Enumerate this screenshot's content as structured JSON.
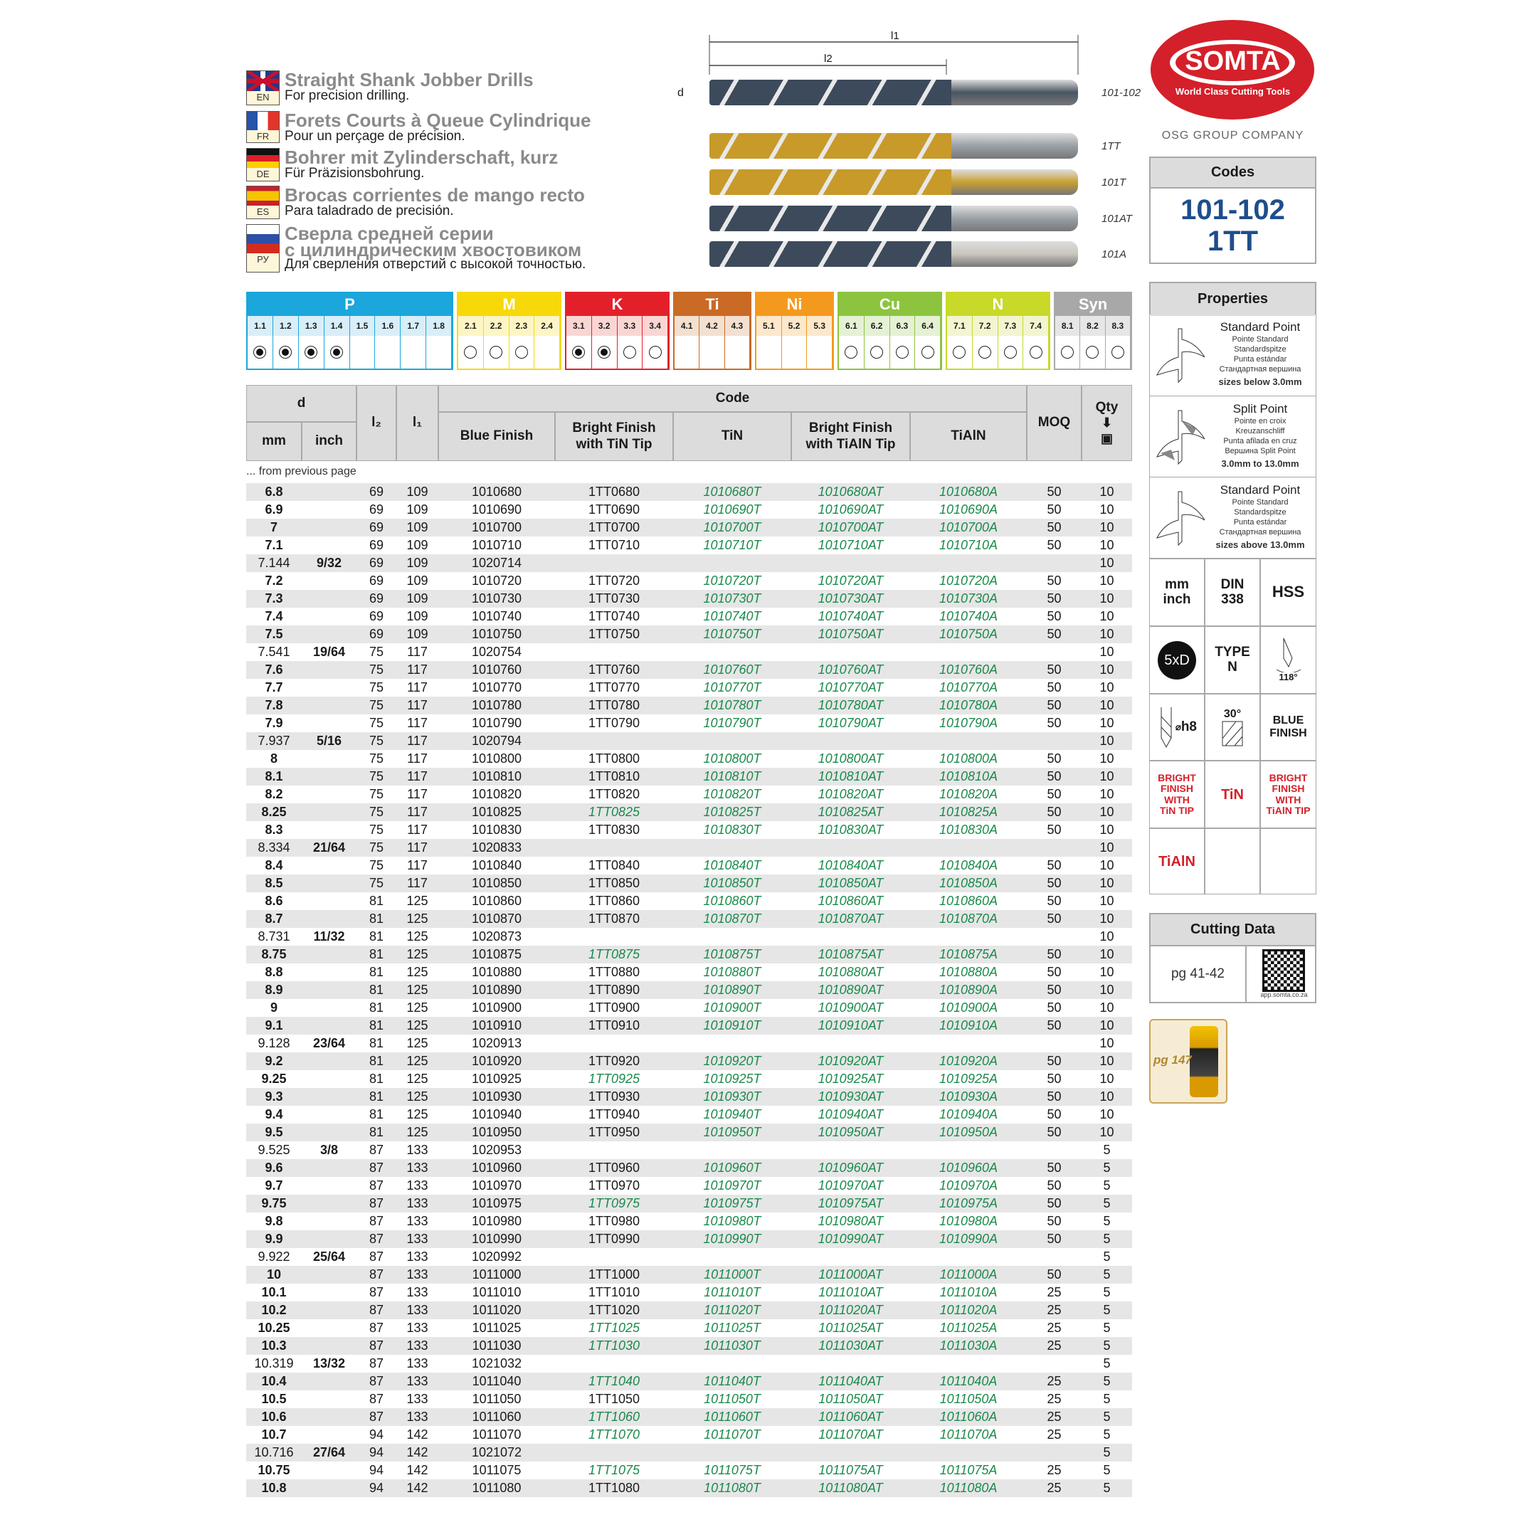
{
  "titles": [
    {
      "lang": "EN",
      "title": "Straight Shank Jobber Drills",
      "subtitle": "For precision drilling."
    },
    {
      "lang": "FR",
      "title": "Forets Courts à Queue Cylindrique",
      "subtitle": "Pour un perçage de précision."
    },
    {
      "lang": "DE",
      "title": "Bohrer mit Zylinderschaft, kurz",
      "subtitle": "Für Präzisionsbohrung."
    },
    {
      "lang": "ES",
      "title": "Brocas corrientes de mango recto",
      "subtitle": "Para taladrado de precisión."
    },
    {
      "lang": "РУ",
      "title": "Сверла средней серии",
      "title2": "с цилиндрическим хвостовиком",
      "subtitle": "Для сверления отверстий с высокой точностью."
    }
  ],
  "drawing": {
    "l1": "l1",
    "l2": "l2",
    "d": "d",
    "labels": [
      "101-102",
      "1TT",
      "101T",
      "101AT",
      "101A"
    ]
  },
  "logo": {
    "brand": "SOMTA",
    "tagline": "World Class Cutting Tools",
    "group": "OSG GROUP COMPANY",
    "color": "#d4202a"
  },
  "codes": {
    "header": "Codes",
    "line1": "101-102",
    "line2": "1TT",
    "color": "#1e4e8c"
  },
  "materials": [
    {
      "name": "P",
      "color": "#1ba6dc",
      "light": "#d8eef8",
      "subs": [
        "1.1",
        "1.2",
        "1.3",
        "1.4",
        "1.5",
        "1.6",
        "1.7",
        "1.8"
      ],
      "marks": [
        "full",
        "full",
        "full",
        "full",
        "",
        "",
        "",
        ""
      ]
    },
    {
      "name": "M",
      "color": "#f7d90a",
      "light": "#fdf6c4",
      "subs": [
        "2.1",
        "2.2",
        "2.3",
        "2.4"
      ],
      "marks": [
        "open",
        "open",
        "open",
        ""
      ]
    },
    {
      "name": "K",
      "color": "#e3202a",
      "light": "#f9d6d4",
      "subs": [
        "3.1",
        "3.2",
        "3.3",
        "3.4"
      ],
      "marks": [
        "full",
        "full",
        "open",
        "open"
      ]
    },
    {
      "name": "Ti",
      "color": "#c96a25",
      "light": "#f3e0d0",
      "subs": [
        "4.1",
        "4.2",
        "4.3"
      ],
      "marks": [
        "",
        "",
        ""
      ]
    },
    {
      "name": "Ni",
      "color": "#f39a1e",
      "light": "#fde8cc",
      "subs": [
        "5.1",
        "5.2",
        "5.3"
      ],
      "marks": [
        "",
        "",
        ""
      ]
    },
    {
      "name": "Cu",
      "color": "#8cc43f",
      "light": "#e5f1d4",
      "subs": [
        "6.1",
        "6.2",
        "6.3",
        "6.4"
      ],
      "marks": [
        "open",
        "open",
        "open",
        "open"
      ]
    },
    {
      "name": "N",
      "color": "#c8d92a",
      "light": "#f2f5cf",
      "subs": [
        "7.1",
        "7.2",
        "7.3",
        "7.4"
      ],
      "marks": [
        "open",
        "open",
        "open",
        "open"
      ]
    },
    {
      "name": "Syn",
      "color": "#a8a8a8",
      "light": "#e6e6e6",
      "subs": [
        "8.1",
        "8.2",
        "8.3"
      ],
      "marks": [
        "open",
        "open",
        "open"
      ]
    }
  ],
  "table": {
    "headers": {
      "d": "d",
      "mm": "mm",
      "inch": "inch",
      "l2": "l₂",
      "l1": "l₁",
      "code": "Code",
      "blue": "Blue Finish",
      "bright_tin": "Bright Finish with TiN Tip",
      "tin": "TiN",
      "bright_tialn": "Bright Finish with TiAlN Tip",
      "tialn": "TiAlN",
      "moq": "MOQ",
      "qty": "Qty"
    },
    "note": "... from previous page",
    "green_color": "#1a8a4a",
    "rows": [
      [
        "6.8",
        "",
        "69",
        "109",
        "1010680",
        "1TT0680",
        "1010680T",
        "1010680AT",
        "1010680A",
        "50",
        "10",
        0
      ],
      [
        "6.9",
        "",
        "69",
        "109",
        "1010690",
        "1TT0690",
        "1010690T",
        "1010690AT",
        "1010690A",
        "50",
        "10",
        0
      ],
      [
        "7",
        "",
        "69",
        "109",
        "1010700",
        "1TT0700",
        "1010700T",
        "1010700AT",
        "1010700A",
        "50",
        "10",
        0
      ],
      [
        "7.1",
        "",
        "69",
        "109",
        "1010710",
        "1TT0710",
        "1010710T",
        "1010710AT",
        "1010710A",
        "50",
        "10",
        0
      ],
      [
        "7.144",
        "9/32",
        "69",
        "109",
        "1020714",
        "",
        "",
        "",
        "",
        "",
        "10",
        0
      ],
      [
        "7.2",
        "",
        "69",
        "109",
        "1010720",
        "1TT0720",
        "1010720T",
        "1010720AT",
        "1010720A",
        "50",
        "10",
        0
      ],
      [
        "7.3",
        "",
        "69",
        "109",
        "1010730",
        "1TT0730",
        "1010730T",
        "1010730AT",
        "1010730A",
        "50",
        "10",
        0
      ],
      [
        "7.4",
        "",
        "69",
        "109",
        "1010740",
        "1TT0740",
        "1010740T",
        "1010740AT",
        "1010740A",
        "50",
        "10",
        0
      ],
      [
        "7.5",
        "",
        "69",
        "109",
        "1010750",
        "1TT0750",
        "1010750T",
        "1010750AT",
        "1010750A",
        "50",
        "10",
        0
      ],
      [
        "7.541",
        "19/64",
        "75",
        "117",
        "1020754",
        "",
        "",
        "",
        "",
        "",
        "10",
        0
      ],
      [
        "7.6",
        "",
        "75",
        "117",
        "1010760",
        "1TT0760",
        "1010760T",
        "1010760AT",
        "1010760A",
        "50",
        "10",
        0
      ],
      [
        "7.7",
        "",
        "75",
        "117",
        "1010770",
        "1TT0770",
        "1010770T",
        "1010770AT",
        "1010770A",
        "50",
        "10",
        0
      ],
      [
        "7.8",
        "",
        "75",
        "117",
        "1010780",
        "1TT0780",
        "1010780T",
        "1010780AT",
        "1010780A",
        "50",
        "10",
        0
      ],
      [
        "7.9",
        "",
        "75",
        "117",
        "1010790",
        "1TT0790",
        "1010790T",
        "1010790AT",
        "1010790A",
        "50",
        "10",
        0
      ],
      [
        "7.937",
        "5/16",
        "75",
        "117",
        "1020794",
        "",
        "",
        "",
        "",
        "",
        "10",
        0
      ],
      [
        "8",
        "",
        "75",
        "117",
        "1010800",
        "1TT0800",
        "1010800T",
        "1010800AT",
        "1010800A",
        "50",
        "10",
        0
      ],
      [
        "8.1",
        "",
        "75",
        "117",
        "1010810",
        "1TT0810",
        "1010810T",
        "1010810AT",
        "1010810A",
        "50",
        "10",
        0
      ],
      [
        "8.2",
        "",
        "75",
        "117",
        "1010820",
        "1TT0820",
        "1010820T",
        "1010820AT",
        "1010820A",
        "50",
        "10",
        0
      ],
      [
        "8.25",
        "",
        "75",
        "117",
        "1010825",
        "1TT0825",
        "1010825T",
        "1010825AT",
        "1010825A",
        "50",
        "10",
        1
      ],
      [
        "8.3",
        "",
        "75",
        "117",
        "1010830",
        "1TT0830",
        "1010830T",
        "1010830AT",
        "1010830A",
        "50",
        "10",
        0
      ],
      [
        "8.334",
        "21/64",
        "75",
        "117",
        "1020833",
        "",
        "",
        "",
        "",
        "",
        "10",
        0
      ],
      [
        "8.4",
        "",
        "75",
        "117",
        "1010840",
        "1TT0840",
        "1010840T",
        "1010840AT",
        "1010840A",
        "50",
        "10",
        0
      ],
      [
        "8.5",
        "",
        "75",
        "117",
        "1010850",
        "1TT0850",
        "1010850T",
        "1010850AT",
        "1010850A",
        "50",
        "10",
        0
      ],
      [
        "8.6",
        "",
        "81",
        "125",
        "1010860",
        "1TT0860",
        "1010860T",
        "1010860AT",
        "1010860A",
        "50",
        "10",
        0
      ],
      [
        "8.7",
        "",
        "81",
        "125",
        "1010870",
        "1TT0870",
        "1010870T",
        "1010870AT",
        "1010870A",
        "50",
        "10",
        0
      ],
      [
        "8.731",
        "11/32",
        "81",
        "125",
        "1020873",
        "",
        "",
        "",
        "",
        "",
        "10",
        0
      ],
      [
        "8.75",
        "",
        "81",
        "125",
        "1010875",
        "1TT0875",
        "1010875T",
        "1010875AT",
        "1010875A",
        "50",
        "10",
        1
      ],
      [
        "8.8",
        "",
        "81",
        "125",
        "1010880",
        "1TT0880",
        "1010880T",
        "1010880AT",
        "1010880A",
        "50",
        "10",
        0
      ],
      [
        "8.9",
        "",
        "81",
        "125",
        "1010890",
        "1TT0890",
        "1010890T",
        "1010890AT",
        "1010890A",
        "50",
        "10",
        0
      ],
      [
        "9",
        "",
        "81",
        "125",
        "1010900",
        "1TT0900",
        "1010900T",
        "1010900AT",
        "1010900A",
        "50",
        "10",
        0
      ],
      [
        "9.1",
        "",
        "81",
        "125",
        "1010910",
        "1TT0910",
        "1010910T",
        "1010910AT",
        "1010910A",
        "50",
        "10",
        0
      ],
      [
        "9.128",
        "23/64",
        "81",
        "125",
        "1020913",
        "",
        "",
        "",
        "",
        "",
        "10",
        0
      ],
      [
        "9.2",
        "",
        "81",
        "125",
        "1010920",
        "1TT0920",
        "1010920T",
        "1010920AT",
        "1010920A",
        "50",
        "10",
        0
      ],
      [
        "9.25",
        "",
        "81",
        "125",
        "1010925",
        "1TT0925",
        "1010925T",
        "1010925AT",
        "1010925A",
        "50",
        "10",
        1
      ],
      [
        "9.3",
        "",
        "81",
        "125",
        "1010930",
        "1TT0930",
        "1010930T",
        "1010930AT",
        "1010930A",
        "50",
        "10",
        0
      ],
      [
        "9.4",
        "",
        "81",
        "125",
        "1010940",
        "1TT0940",
        "1010940T",
        "1010940AT",
        "1010940A",
        "50",
        "10",
        0
      ],
      [
        "9.5",
        "",
        "81",
        "125",
        "1010950",
        "1TT0950",
        "1010950T",
        "1010950AT",
        "1010950A",
        "50",
        "10",
        0
      ],
      [
        "9.525",
        "3/8",
        "87",
        "133",
        "1020953",
        "",
        "",
        "",
        "",
        "",
        "5",
        0
      ],
      [
        "9.6",
        "",
        "87",
        "133",
        "1010960",
        "1TT0960",
        "1010960T",
        "1010960AT",
        "1010960A",
        "50",
        "5",
        0
      ],
      [
        "9.7",
        "",
        "87",
        "133",
        "1010970",
        "1TT0970",
        "1010970T",
        "1010970AT",
        "1010970A",
        "50",
        "5",
        0
      ],
      [
        "9.75",
        "",
        "87",
        "133",
        "1010975",
        "1TT0975",
        "1010975T",
        "1010975AT",
        "1010975A",
        "50",
        "5",
        1
      ],
      [
        "9.8",
        "",
        "87",
        "133",
        "1010980",
        "1TT0980",
        "1010980T",
        "1010980AT",
        "1010980A",
        "50",
        "5",
        0
      ],
      [
        "9.9",
        "",
        "87",
        "133",
        "1010990",
        "1TT0990",
        "1010990T",
        "1010990AT",
        "1010990A",
        "50",
        "5",
        0
      ],
      [
        "9.922",
        "25/64",
        "87",
        "133",
        "1020992",
        "",
        "",
        "",
        "",
        "",
        "5",
        0
      ],
      [
        "10",
        "",
        "87",
        "133",
        "1011000",
        "1TT1000",
        "1011000T",
        "1011000AT",
        "1011000A",
        "50",
        "5",
        0
      ],
      [
        "10.1",
        "",
        "87",
        "133",
        "1011010",
        "1TT1010",
        "1011010T",
        "1011010AT",
        "1011010A",
        "25",
        "5",
        0
      ],
      [
        "10.2",
        "",
        "87",
        "133",
        "1011020",
        "1TT1020",
        "1011020T",
        "1011020AT",
        "1011020A",
        "25",
        "5",
        0
      ],
      [
        "10.25",
        "",
        "87",
        "133",
        "1011025",
        "1TT1025",
        "1011025T",
        "1011025AT",
        "1011025A",
        "25",
        "5",
        1
      ],
      [
        "10.3",
        "",
        "87",
        "133",
        "1011030",
        "1TT1030",
        "1011030T",
        "1011030AT",
        "1011030A",
        "25",
        "5",
        1
      ],
      [
        "10.319",
        "13/32",
        "87",
        "133",
        "1021032",
        "",
        "",
        "",
        "",
        "",
        "5",
        0
      ],
      [
        "10.4",
        "",
        "87",
        "133",
        "1011040",
        "1TT1040",
        "1011040T",
        "1011040AT",
        "1011040A",
        "25",
        "5",
        1
      ],
      [
        "10.5",
        "",
        "87",
        "133",
        "1011050",
        "1TT1050",
        "1011050T",
        "1011050AT",
        "1011050A",
        "25",
        "5",
        0
      ],
      [
        "10.6",
        "",
        "87",
        "133",
        "1011060",
        "1TT1060",
        "1011060T",
        "1011060AT",
        "1011060A",
        "25",
        "5",
        1
      ],
      [
        "10.7",
        "",
        "94",
        "142",
        "1011070",
        "1TT1070",
        "1011070T",
        "1011070AT",
        "1011070A",
        "25",
        "5",
        1
      ],
      [
        "10.716",
        "27/64",
        "94",
        "142",
        "1021072",
        "",
        "",
        "",
        "",
        "",
        "5",
        0
      ],
      [
        "10.75",
        "",
        "94",
        "142",
        "1011075",
        "1TT1075",
        "1011075T",
        "1011075AT",
        "1011075A",
        "25",
        "5",
        1
      ],
      [
        "10.8",
        "",
        "94",
        "142",
        "1011080",
        "1TT1080",
        "1011080T",
        "1011080AT",
        "1011080A",
        "25",
        "5",
        0
      ]
    ]
  },
  "properties": {
    "header": "Properties",
    "points": [
      {
        "name": "Standard Point",
        "fr": "Pointe Standard",
        "de": "Standardspitze",
        "es": "Punta estándar",
        "ru": "Стандартная вершина",
        "range": "sizes below 3.0mm"
      },
      {
        "name": "Split Point",
        "fr": "Pointe en croix",
        "de": "Kreuzanschliff",
        "es": "Punta afilada en cruz",
        "ru": "Вершина Split Point",
        "range": "3.0mm to 13.0mm"
      },
      {
        "name": "Standard Point",
        "fr": "Pointe Standard",
        "de": "Standardspitze",
        "es": "Punta estándar",
        "ru": "Стандартная вершина",
        "range": "sizes above 13.0mm"
      }
    ],
    "mm_inch": [
      "mm",
      "inch"
    ],
    "din": [
      "DIN",
      "338"
    ],
    "hss": "HSS",
    "ld": "5xD",
    "type": [
      "TYPE",
      "N"
    ],
    "angle": "118°",
    "tolerance": "h8",
    "helix": "30°",
    "blue": [
      "BLUE",
      "FINISH"
    ],
    "bright_tin": [
      "BRIGHT",
      "FINISH",
      "WITH",
      "TiN TIP"
    ],
    "tin": "TiN",
    "bright_tialn": [
      "BRIGHT",
      "FINISH",
      "WITH",
      "TiAlN TIP"
    ],
    "tialn": "TiAlN"
  },
  "cutting": {
    "header": "Cutting Data",
    "pages": "pg 41-42",
    "qr_caption": "app.somta.co.za"
  },
  "fluid": {
    "page": "pg 147"
  }
}
